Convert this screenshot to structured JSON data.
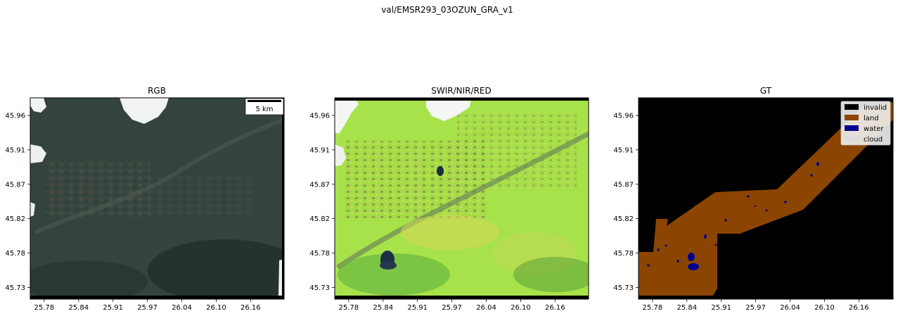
{
  "suptitle": "val/EMSR293_03OZUN_GRA_v1",
  "colors": {
    "invalid": "#000000",
    "land": "#8b4500",
    "water": "#00008b",
    "cloud": "#dcdcdc",
    "rgb_base": "#34433d",
    "swir_base": "#a8e24a"
  },
  "chart_data": [
    {
      "type": "image",
      "title": "RGB",
      "x_ticks": [
        "25.78",
        "25.84",
        "25.91",
        "25.97",
        "26.04",
        "26.10",
        "26.16"
      ],
      "y_ticks": [
        "45.96",
        "45.91",
        "45.87",
        "45.82",
        "45.78",
        "45.73"
      ],
      "scalebar_label": "5 km"
    },
    {
      "type": "image",
      "title": "SWIR/NIR/RED",
      "x_ticks": [
        "25.78",
        "25.84",
        "25.91",
        "25.97",
        "26.04",
        "26.10",
        "26.16"
      ],
      "y_ticks": [
        "45.96",
        "45.91",
        "45.87",
        "45.82",
        "45.78",
        "45.73"
      ]
    },
    {
      "type": "image",
      "title": "GT",
      "x_ticks": [
        "25.78",
        "25.84",
        "25.91",
        "25.97",
        "26.04",
        "26.10",
        "26.16"
      ],
      "y_ticks": [
        "45.96",
        "45.91",
        "45.87",
        "45.82",
        "45.78",
        "45.73"
      ],
      "legend": [
        {
          "label": "invalid",
          "color": "#000000"
        },
        {
          "label": "land",
          "color": "#8b4500"
        },
        {
          "label": "water",
          "color": "#00008b"
        },
        {
          "label": "cloud",
          "color": "#dcdcdc"
        }
      ]
    }
  ]
}
